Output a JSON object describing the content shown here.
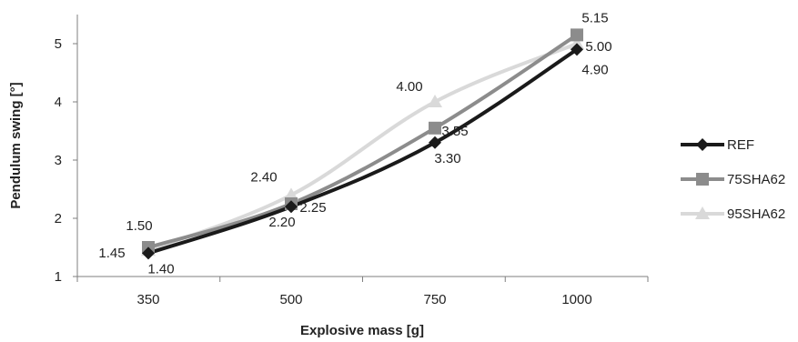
{
  "chart_data": {
    "type": "line",
    "categories": [
      "350",
      "500",
      "750",
      "1000"
    ],
    "series": [
      {
        "name": "REF",
        "values": [
          1.4,
          2.2,
          3.3,
          4.9
        ],
        "color": "#1a1a1a",
        "marker": "diamond"
      },
      {
        "name": "75SHA62",
        "values": [
          1.5,
          2.25,
          3.55,
          5.15
        ],
        "color": "#8c8c8c",
        "marker": "square"
      },
      {
        "name": "95SHA62",
        "values": [
          1.45,
          2.4,
          4.0,
          5.0
        ],
        "color": "#d9d9d9",
        "marker": "triangle"
      }
    ],
    "data_labels": [
      [
        "1.40",
        "2.20",
        "3.30",
        "4.90"
      ],
      [
        "1.50",
        "2.25",
        "3.55",
        "5.15"
      ],
      [
        "1.45",
        "2.40",
        "4.00",
        "5.00"
      ]
    ],
    "yticks": [
      "1",
      "2",
      "3",
      "4",
      "5"
    ],
    "xlabel": "Explosive mass [g]",
    "ylabel": "Pendulum swing [°]",
    "ylim": [
      1,
      5.5
    ],
    "grid": false,
    "legend": "right"
  }
}
